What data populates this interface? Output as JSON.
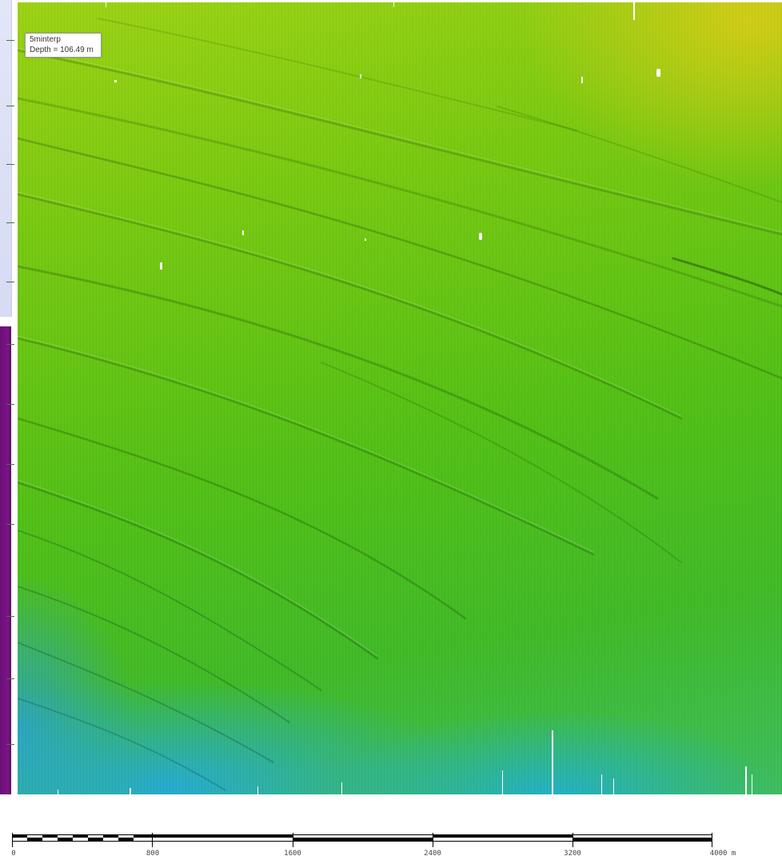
{
  "layer_info": {
    "layer_name": "5minterp",
    "depth_readout": "Depth = 106.49 m"
  },
  "scale_bar": {
    "labels": [
      "0",
      "800",
      "1600",
      "2400",
      "3200",
      "4000 m"
    ]
  },
  "colors": {
    "shallow": "#d6cd14",
    "mid": "#52c014",
    "deep": "#23aad7",
    "side_panel_top": "#dfe2f5",
    "side_panel_bottom": "#6a0f78"
  }
}
